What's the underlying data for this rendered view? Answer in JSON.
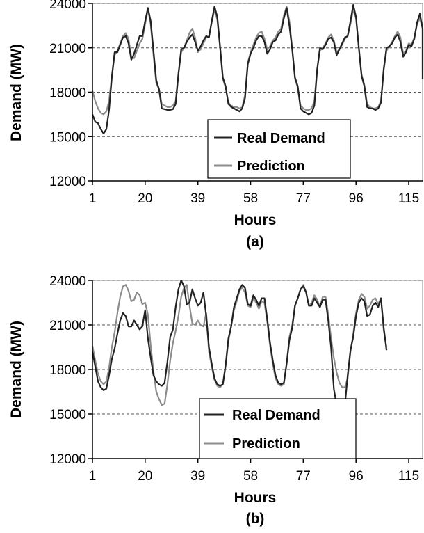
{
  "chart_data": [
    {
      "type": "line",
      "caption": "(a)",
      "xlabel": "Hours",
      "ylabel": "Demand (MW)",
      "ylim": [
        12000,
        24000
      ],
      "xlim": [
        1,
        120
      ],
      "x_ticks": [
        1,
        20,
        39,
        58,
        77,
        96,
        115
      ],
      "y_ticks": [
        12000,
        15000,
        18000,
        21000,
        24000
      ],
      "grid": "horizontal dashed",
      "legend_position": "center-right",
      "x_start": 1,
      "series": [
        {
          "name": "Real Demand",
          "color": "#222222",
          "values": [
            16500,
            16000,
            15900,
            15500,
            15200,
            15500,
            16800,
            19000,
            20700,
            20700,
            21200,
            21700,
            21800,
            21300,
            20200,
            20600,
            21200,
            21800,
            21800,
            22800,
            23700,
            22800,
            20800,
            18800,
            18200,
            16900,
            16850,
            16800,
            16800,
            16850,
            17200,
            19200,
            20900,
            21000,
            21400,
            21700,
            21900,
            21400,
            20800,
            21100,
            21500,
            21800,
            21700,
            22800,
            23800,
            23100,
            21100,
            19000,
            18400,
            17200,
            17000,
            16900,
            16800,
            16700,
            16900,
            17600,
            19900,
            20600,
            21000,
            21500,
            21800,
            21800,
            21400,
            20600,
            20900,
            21400,
            21500,
            21900,
            22100,
            23000,
            23700,
            22500,
            20900,
            19000,
            18400,
            16900,
            16700,
            16600,
            16500,
            16600,
            17100,
            19500,
            21000,
            20900,
            21200,
            21600,
            21700,
            21400,
            20500,
            20900,
            21300,
            21700,
            21800,
            22800,
            23900,
            23100,
            21000,
            19100,
            18400,
            17000,
            16900,
            16900,
            16800,
            16900,
            17300,
            19600,
            21000,
            21100,
            21300,
            21700,
            21900,
            21400,
            20400,
            20700,
            21200,
            21100,
            21600,
            22700,
            23300,
            22300,
            18900
          ]
        },
        {
          "name": "Prediction",
          "color": "#8c8c8c",
          "values": [
            18100,
            17400,
            16900,
            16600,
            16500,
            16700,
            17400,
            19100,
            20500,
            20800,
            21300,
            21800,
            22000,
            21600,
            20400,
            20300,
            20800,
            21300,
            21600,
            22600,
            23600,
            22600,
            20500,
            18600,
            18200,
            17200,
            17100,
            17000,
            17000,
            17100,
            17400,
            19300,
            20700,
            21000,
            21500,
            22000,
            22300,
            21700,
            20700,
            20900,
            21300,
            21700,
            21800,
            22700,
            23600,
            22900,
            21000,
            18900,
            18300,
            17300,
            17100,
            17000,
            17000,
            16900,
            17000,
            17800,
            20000,
            20700,
            21200,
            21700,
            22000,
            22100,
            21600,
            20900,
            21100,
            21500,
            21700,
            22100,
            22300,
            23200,
            23800,
            22800,
            21000,
            18900,
            18300,
            17100,
            16900,
            16800,
            16800,
            16900,
            17400,
            19600,
            20800,
            21000,
            21300,
            21700,
            21900,
            21500,
            20700,
            20900,
            21200,
            21600,
            21800,
            22600,
            23600,
            23000,
            21100,
            19200,
            18500,
            17200,
            17000,
            16900,
            16900,
            17000,
            17400,
            19500,
            20800,
            21100,
            21400,
            21800,
            22100,
            21700,
            20600,
            20800,
            21300,
            21200,
            21700,
            22600,
            23000,
            22300,
            19500
          ]
        }
      ]
    },
    {
      "type": "line",
      "caption": "(b)",
      "xlabel": "Hours",
      "ylabel": "Demand (MW)",
      "ylim": [
        12000,
        24000
      ],
      "xlim": [
        1,
        120
      ],
      "x_ticks": [
        1,
        20,
        39,
        58,
        77,
        96,
        115
      ],
      "y_ticks": [
        12000,
        15000,
        18000,
        21000,
        24000
      ],
      "grid": "horizontal dashed",
      "legend_position": "center-right",
      "x_start": 1,
      "series": [
        {
          "name": "Real Demand",
          "color": "#222222",
          "values": [
            19200,
            18200,
            17200,
            16800,
            16600,
            16700,
            17600,
            18700,
            19400,
            20400,
            21300,
            21800,
            21600,
            20900,
            20900,
            21300,
            21000,
            20700,
            20900,
            22000,
            20100,
            18800,
            17600,
            17200,
            17000,
            16900,
            17100,
            18500,
            20200,
            20700,
            22200,
            23400,
            24000,
            23600,
            22400,
            22500,
            23400,
            22800,
            22300,
            22500,
            23200,
            21600,
            19500,
            18400,
            17400,
            17000,
            16900,
            17000,
            18300,
            20100,
            20900,
            22200,
            22800,
            23400,
            23700,
            23500,
            22400,
            22300,
            23000,
            22700,
            22300,
            22800,
            22800,
            21400,
            19800,
            18600,
            17600,
            17100,
            17000,
            17100,
            18400,
            20000,
            20800,
            22300,
            22800,
            23400,
            23600,
            23200,
            22300,
            22300,
            22800,
            22500,
            22200,
            22700,
            22700,
            21300,
            19500,
            16700,
            15600,
            15000,
            15100,
            15600,
            17600,
            19300,
            20200,
            21600,
            22500,
            22800,
            22600,
            21600,
            21700,
            22300,
            22500,
            22200,
            22800,
            20800,
            19300
          ]
        },
        {
          "name": "Prediction",
          "color": "#8c8c8c",
          "values": [
            19600,
            18600,
            17700,
            17200,
            17000,
            17200,
            18100,
            19500,
            20500,
            21800,
            22900,
            23600,
            23700,
            23300,
            22600,
            22700,
            23200,
            23000,
            22400,
            22500,
            21700,
            19600,
            17900,
            16500,
            16000,
            15600,
            15700,
            17000,
            18600,
            19800,
            20600,
            21600,
            22900,
            23500,
            23700,
            22300,
            21100,
            21000,
            21300,
            21000,
            20900,
            21800,
            19200,
            18200,
            17300,
            16900,
            16800,
            17000,
            18200,
            19900,
            20900,
            22000,
            22600,
            23300,
            23500,
            23200,
            22300,
            22200,
            22800,
            22500,
            22100,
            22600,
            22500,
            21200,
            19600,
            18400,
            17400,
            17000,
            16900,
            17000,
            18400,
            20200,
            21000,
            22300,
            22800,
            23400,
            23700,
            23200,
            22300,
            22500,
            23000,
            22700,
            22200,
            22900,
            22900,
            21700,
            20100,
            18800,
            17800,
            17100,
            16800,
            16800,
            17400,
            19200,
            20400,
            21800,
            22700,
            23100,
            22900,
            22100,
            22300,
            22700,
            22800,
            22400,
            22800,
            20600,
            19500
          ]
        }
      ]
    }
  ]
}
